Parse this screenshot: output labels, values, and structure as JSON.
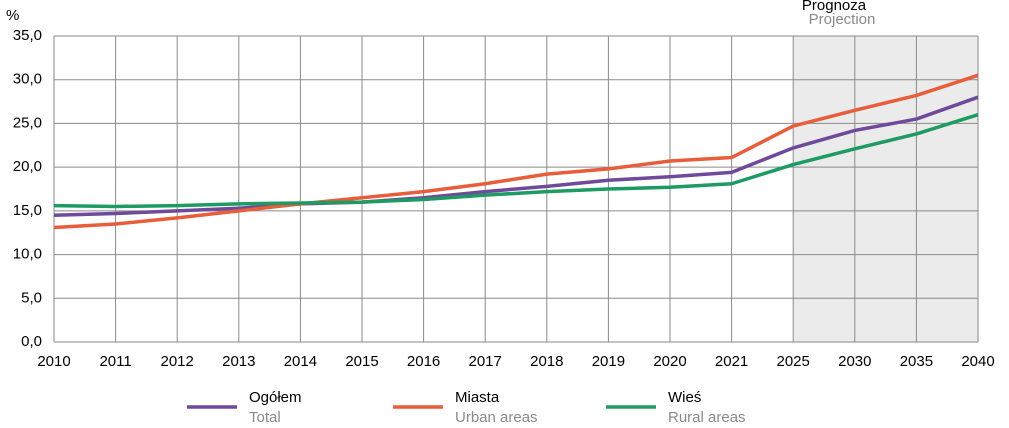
{
  "chart_data": {
    "type": "line",
    "y_unit": "%",
    "categories": [
      "2010",
      "2011",
      "2012",
      "2013",
      "2014",
      "2015",
      "2016",
      "2017",
      "2018",
      "2019",
      "2020",
      "2021",
      "2025",
      "2030",
      "2035",
      "2040"
    ],
    "series": [
      {
        "name": "Ogółem",
        "name_en": "Total",
        "color": "#6f4a9b",
        "values": [
          14.5,
          14.7,
          15.0,
          15.3,
          15.8,
          16.0,
          16.5,
          17.2,
          17.8,
          18.5,
          18.9,
          19.4,
          22.2,
          24.2,
          25.5,
          28.0
        ]
      },
      {
        "name": "Miasta",
        "name_en": "Urban areas",
        "color": "#e85d3a",
        "values": [
          13.1,
          13.5,
          14.2,
          15.0,
          15.8,
          16.5,
          17.2,
          18.1,
          19.2,
          19.8,
          20.7,
          21.1,
          24.7,
          26.5,
          28.2,
          30.5
        ]
      },
      {
        "name": "Wieś",
        "name_en": "Rural areas",
        "color": "#1e9a63",
        "values": [
          15.6,
          15.5,
          15.6,
          15.8,
          15.9,
          16.0,
          16.3,
          16.8,
          17.2,
          17.5,
          17.7,
          18.1,
          20.3,
          22.1,
          23.8,
          26.0
        ]
      }
    ],
    "ylim": [
      0,
      35
    ],
    "yticks": [
      {
        "value": 0,
        "label": "0,0"
      },
      {
        "value": 5,
        "label": "5,0"
      },
      {
        "value": 10,
        "label": "10,0"
      },
      {
        "value": 15,
        "label": "15,0"
      },
      {
        "value": 20,
        "label": "20,0"
      },
      {
        "value": 25,
        "label": "25,0"
      },
      {
        "value": 30,
        "label": "30,0"
      },
      {
        "value": 35,
        "label": "35,0"
      }
    ],
    "grid": true,
    "projection": {
      "from": "2025",
      "label": "Prognoza",
      "label_en": "Projection"
    }
  }
}
